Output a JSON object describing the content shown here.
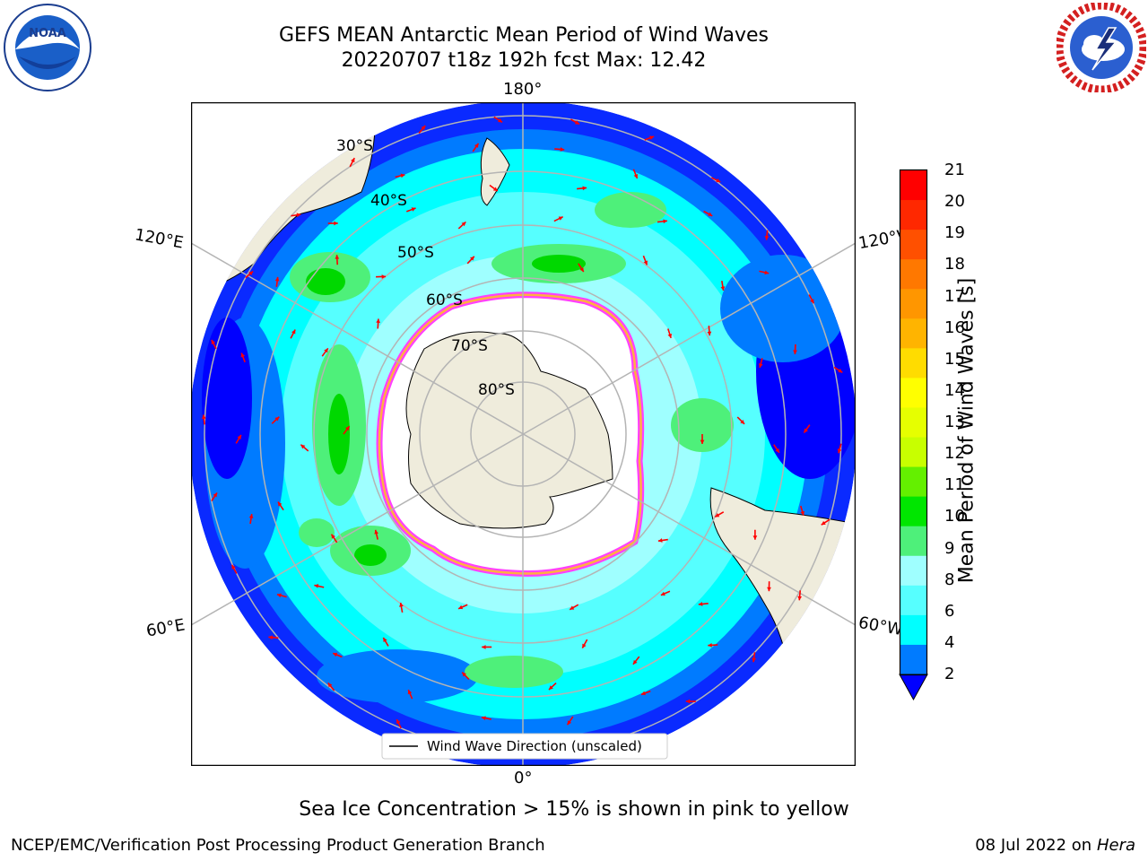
{
  "title": {
    "line1": "GEFS MEAN Antarctic Mean Period of Wind Waves",
    "line2": "20220707 t18z 192h fcst   Max: 12.42"
  },
  "logos": {
    "left": {
      "icon": "noaa-logo",
      "text": "NOAA",
      "ring_text": "NATIONAL OCEANIC AND ATMOSPHERIC ADMINISTRATION · U.S. DEPARTMENT OF COMMERCE",
      "color": "#1a3d8f"
    },
    "right": {
      "icon": "national-weather-service-logo",
      "ring_text": "NATIONAL WEATHER SERVICE",
      "color": "#d42020"
    }
  },
  "map": {
    "projection": "south-polar-stereographic",
    "longitude_labels": {
      "top": "180°",
      "bottom": "0°",
      "left_upper": "120°E",
      "left_lower": "60°E",
      "right_upper": "120°W",
      "right_lower": "60°W"
    },
    "latitude_labels": [
      "30°S",
      "40°S",
      "50°S",
      "60°S",
      "70°S",
      "80°S"
    ],
    "legend": {
      "label": "Wind Wave Direction (unscaled)"
    },
    "colors": {
      "land": "#efecdc",
      "ocean_4_6": "#00ffff",
      "ocean_6_8": "#56ffff",
      "ocean_8_9": "#9fffff",
      "ocean_9_10": "#4ef07a",
      "ocean_10_11": "#00d800",
      "ocean_2_4": "#007bff",
      "ocean_under_2": "#0000ff",
      "sea_ice_edge": [
        "#ff40ff",
        "#ffb040",
        "#ffff00"
      ],
      "arrows": "#ff0000",
      "grid": "#b4b4b4"
    }
  },
  "colorbar": {
    "label": "Mean Period of Wind Waves [s]",
    "ticks": [
      "21",
      "20",
      "19",
      "18",
      "17",
      "16",
      "15",
      "14",
      "13",
      "12",
      "11",
      "10",
      "9",
      "8",
      "6",
      "4",
      "2"
    ],
    "colors_top_to_bottom": [
      "#ff0000",
      "#ff2800",
      "#ff5000",
      "#ff7800",
      "#ff9600",
      "#ffb400",
      "#ffdc00",
      "#ffff00",
      "#e6ff00",
      "#c8ff00",
      "#64f000",
      "#00e600",
      "#4ef07a",
      "#9fffff",
      "#56ffff",
      "#00ffff",
      "#007bff"
    ],
    "under_color": "#0000ff"
  },
  "caption": "Sea Ice Concentration > 15% is shown in pink to yellow",
  "footer": {
    "left": "NCEP/EMC/Verification Post Processing Product Generation Branch",
    "right_prefix": "08 Jul 2022 on ",
    "right_emph": "Hera"
  }
}
